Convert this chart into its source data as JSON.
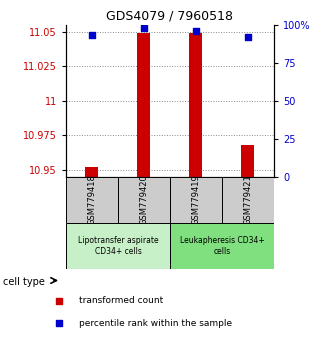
{
  "title": "GDS4079 / 7960518",
  "samples": [
    "GSM779418",
    "GSM779420",
    "GSM779419",
    "GSM779421"
  ],
  "red_counts": [
    10.952,
    11.049,
    11.049,
    10.968
  ],
  "blue_ranks": [
    93,
    98,
    96,
    92
  ],
  "ylim_left": [
    10.945,
    11.055
  ],
  "ylim_right": [
    0,
    100
  ],
  "yticks_left": [
    10.95,
    10.975,
    11.0,
    11.025,
    11.05
  ],
  "yticks_right": [
    0,
    25,
    50,
    75,
    100
  ],
  "ytick_labels_left": [
    "10.95",
    "10.975",
    "11",
    "11.025",
    "11.05"
  ],
  "ytick_labels_right": [
    "0",
    "25",
    "50",
    "75",
    "100%"
  ],
  "cell_groups": [
    {
      "label": "Lipotransfer aspirate\nCD34+ cells",
      "samples": [
        0,
        1
      ],
      "color": "#c8f0c8"
    },
    {
      "label": "Leukapheresis CD34+\ncells",
      "samples": [
        2,
        3
      ],
      "color": "#80e080"
    }
  ],
  "bar_color": "#cc0000",
  "dot_color": "#0000cc",
  "bar_width": 0.25,
  "dot_size": 18,
  "grid_color": "#888888",
  "background_color": "#ffffff",
  "legend_red_label": "transformed count",
  "legend_blue_label": "percentile rank within the sample",
  "cell_type_label": "cell type",
  "sample_box_color": "#cccccc"
}
